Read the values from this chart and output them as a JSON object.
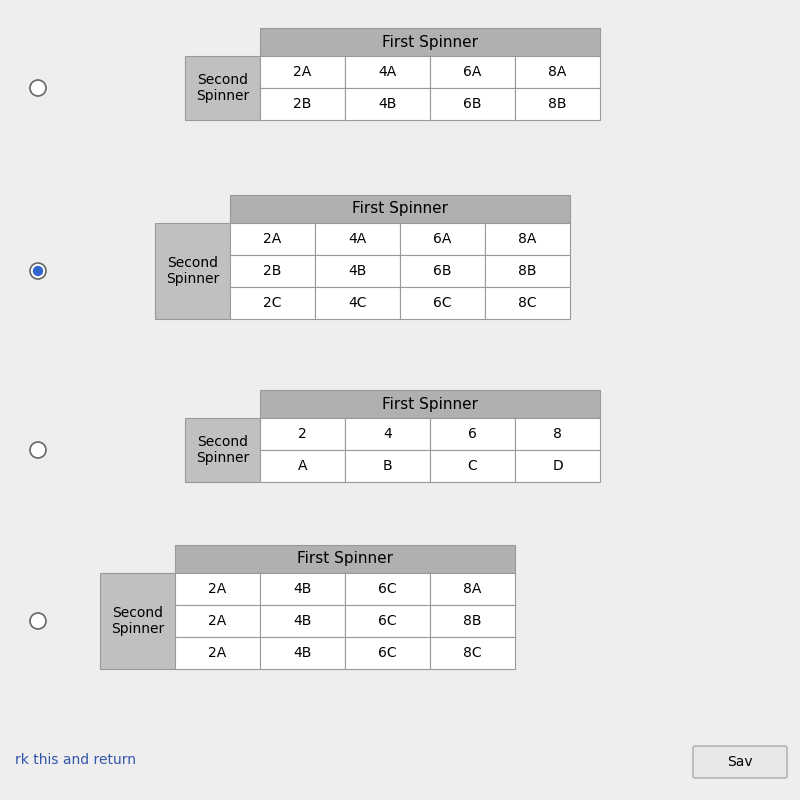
{
  "background_color": "#eeeeee",
  "header_color": "#b0b0b0",
  "label_color": "#c0c0c0",
  "cell_color": "#ffffff",
  "border_color": "#999999",
  "tables": [
    {
      "title": "First Spinner",
      "label": "Second\nSpinner",
      "data_rows": [
        [
          "2A",
          "4A",
          "6A",
          "8A"
        ],
        [
          "2B",
          "4B",
          "6B",
          "8B"
        ]
      ],
      "radio_selected": false
    },
    {
      "title": "First Spinner",
      "label": "Second\nSpinner",
      "data_rows": [
        [
          "2A",
          "4A",
          "6A",
          "8A"
        ],
        [
          "2B",
          "4B",
          "6B",
          "8B"
        ],
        [
          "2C",
          "4C",
          "6C",
          "8C"
        ]
      ],
      "radio_selected": true
    },
    {
      "title": "First Spinner",
      "label": "Second\nSpinner",
      "data_rows": [
        [
          "2",
          "4",
          "6",
          "8"
        ],
        [
          "A",
          "B",
          "C",
          "D"
        ]
      ],
      "radio_selected": false
    },
    {
      "title": "First Spinner",
      "label": "Second\nSpinner",
      "data_rows": [
        [
          "2A",
          "4B",
          "6C",
          "8A"
        ],
        [
          "2A",
          "4B",
          "6C",
          "8B"
        ],
        [
          "2A",
          "4B",
          "6C",
          "8C"
        ]
      ],
      "radio_selected": false
    }
  ],
  "bottom_text": "rk this and return",
  "bottom_button": "Sav",
  "font_size": 10,
  "title_font_size": 11,
  "label_font_size": 10
}
